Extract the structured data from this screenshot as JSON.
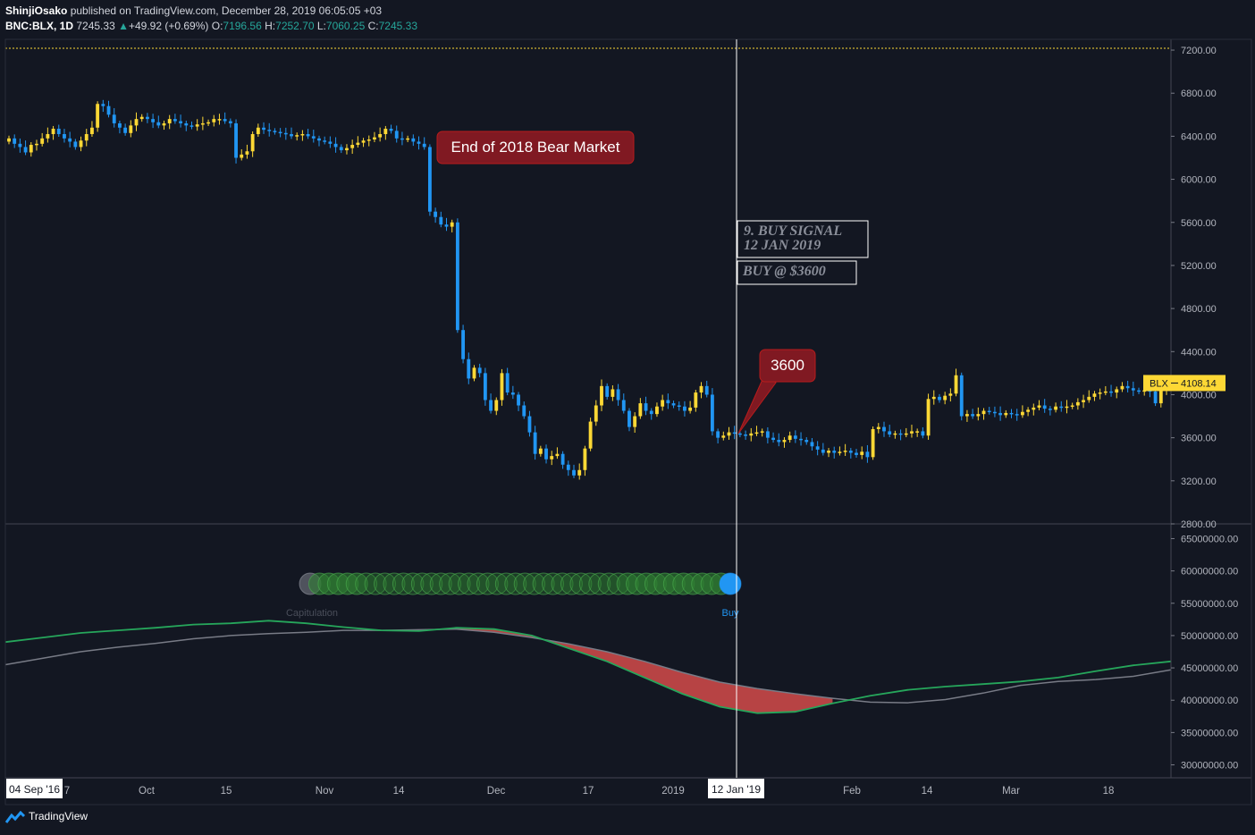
{
  "header": {
    "author": "ShinjiOsako",
    "published": "published on TradingView.com, December 28, 2019 06:05:05 +03",
    "symbol": "BNC:BLX, 1D",
    "last": "7245.33",
    "change_arrow": "▲",
    "change": "+49.92 (+0.69%)",
    "o_label": "O:",
    "o": "7196.56",
    "h_label": "H:",
    "h": "7252.70",
    "l_label": "L:",
    "l": "7060.25",
    "c_label": "C:",
    "c": "7245.33"
  },
  "colors": {
    "background": "#131722",
    "up": "#fdd835",
    "down": "#2196f3",
    "green_line": "#26a65b",
    "grey_line": "#787b86",
    "fill_red": "#ef5350",
    "crosshair": "#ffffff",
    "price_line": "#fdd835"
  },
  "annotations": {
    "bear_market": "End of 2018 Bear Market",
    "buy_signal_line1": "9. BUY SIGNAL",
    "buy_signal_line2": "12 JAN 2019",
    "buy_at": "BUY @ $3600",
    "callout_3600": "3600",
    "dots_left_label": "Capitulation",
    "dots_right_label": "Buy"
  },
  "price_tag": {
    "symbol": "BLX",
    "value": "4108.14"
  },
  "crosshair_label": "12 Jan '19",
  "range_start_label": "04 Sep '16",
  "footer": {
    "brand": "TradingView",
    "logo_icon": "tradingview-logo-icon"
  },
  "chart_data": [
    {
      "type": "candlestick",
      "symbol": "BNC:BLX",
      "interval": "1D",
      "ylim": [
        2800,
        7300
      ],
      "y_ticks": [
        "7200.00",
        "6800.00",
        "6400.00",
        "6000.00",
        "5600.00",
        "5200.00",
        "4800.00",
        "4400.00",
        "4000.00",
        "3600.00",
        "3200.00",
        "2800.00"
      ],
      "y_tick_values": [
        7200,
        6800,
        6400,
        6000,
        5600,
        5200,
        4800,
        4400,
        4000,
        3600,
        3200,
        2800
      ],
      "x_ticks": [
        "7",
        "Oct",
        "15",
        "Nov",
        "14",
        "Dec",
        "17",
        "2019",
        "Feb",
        "14",
        "Mar",
        "18"
      ],
      "close_series": [
        6380,
        6330,
        6300,
        6250,
        6320,
        6330,
        6380,
        6420,
        6470,
        6420,
        6380,
        6350,
        6300,
        6360,
        6420,
        6480,
        6700,
        6680,
        6600,
        6520,
        6480,
        6430,
        6500,
        6560,
        6580,
        6560,
        6530,
        6500,
        6520,
        6560,
        6540,
        6520,
        6500,
        6490,
        6510,
        6520,
        6530,
        6560,
        6560,
        6540,
        6520,
        6200,
        6230,
        6260,
        6420,
        6480,
        6460,
        6450,
        6440,
        6430,
        6420,
        6400,
        6410,
        6420,
        6400,
        6380,
        6360,
        6350,
        6330,
        6300,
        6270,
        6290,
        6320,
        6340,
        6360,
        6370,
        6390,
        6420,
        6470,
        6450,
        6380,
        6370,
        6380,
        6350,
        6330,
        6300,
        5700,
        5650,
        5580,
        5560,
        5600,
        4600,
        4330,
        4150,
        4250,
        4200,
        3950,
        3850,
        3950,
        4200,
        4020,
        4000,
        3900,
        3800,
        3650,
        3450,
        3500,
        3400,
        3430,
        3450,
        3350,
        3300,
        3250,
        3300,
        3500,
        3750,
        3900,
        4080,
        3980,
        4050,
        3950,
        3850,
        3700,
        3800,
        3920,
        3850,
        3820,
        3890,
        3950,
        3920,
        3900,
        3890,
        3850,
        3880,
        4020,
        4080,
        4000,
        3660,
        3600,
        3620,
        3650,
        3640,
        3630,
        3620,
        3640,
        3650,
        3660,
        3600,
        3580,
        3560,
        3580,
        3620,
        3590,
        3580,
        3560,
        3520,
        3490,
        3460,
        3480,
        3460,
        3470,
        3480,
        3460,
        3440,
        3470,
        3420,
        3680,
        3700,
        3660,
        3630,
        3640,
        3630,
        3640,
        3660,
        3660,
        3620,
        3960,
        3980,
        3950,
        3990,
        4010,
        4180,
        3800,
        3820,
        3800,
        3820,
        3850,
        3840,
        3830,
        3810,
        3830,
        3820,
        3810,
        3840,
        3860,
        3880,
        3900,
        3870,
        3860,
        3890,
        3880,
        3890,
        3900,
        3930,
        3950,
        3980,
        4010,
        4020,
        4030,
        4020,
        4050,
        4080,
        4060,
        4040,
        4030,
        4040,
        4030,
        3920,
        4050,
        4108
      ]
    },
    {
      "type": "line",
      "ylim": [
        28000000,
        67000000
      ],
      "y_ticks": [
        "65000000.00",
        "60000000.00",
        "55000000.00",
        "50000000.00",
        "45000000.00",
        "40000000.00",
        "35000000.00",
        "30000000.00"
      ],
      "y_tick_values": [
        65000000,
        60000000,
        55000000,
        50000000,
        45000000,
        40000000,
        35000000,
        30000000
      ],
      "series": [
        {
          "values": [
            49000000,
            49700000,
            50400000,
            50800000,
            51200000,
            51700000,
            51900000,
            52300000,
            51900000,
            51300000,
            50800000,
            50700000,
            51200000,
            51000000,
            50000000,
            48000000,
            46000000,
            43500000,
            41000000,
            39000000,
            38000000,
            38200000,
            39500000,
            40700000,
            41600000,
            42100000,
            42500000,
            42900000,
            43500000,
            44500000,
            45400000,
            46000000
          ]
        },
        {
          "values": [
            45500000,
            46500000,
            47500000,
            48200000,
            48800000,
            49500000,
            50000000,
            50300000,
            50500000,
            50800000,
            50800000,
            50900000,
            51000000,
            50500000,
            49700000,
            48700000,
            47500000,
            46000000,
            44300000,
            42800000,
            41800000,
            41000000,
            40300000,
            39700000,
            39600000,
            40100000,
            41100000,
            42300000,
            42900000,
            43200000,
            43700000,
            44700000
          ]
        }
      ],
      "fill_region": "between series where second exceeds first",
      "signal_dots": {
        "count": 46,
        "left_label": "Capitulation",
        "right_label": "Buy"
      }
    }
  ]
}
